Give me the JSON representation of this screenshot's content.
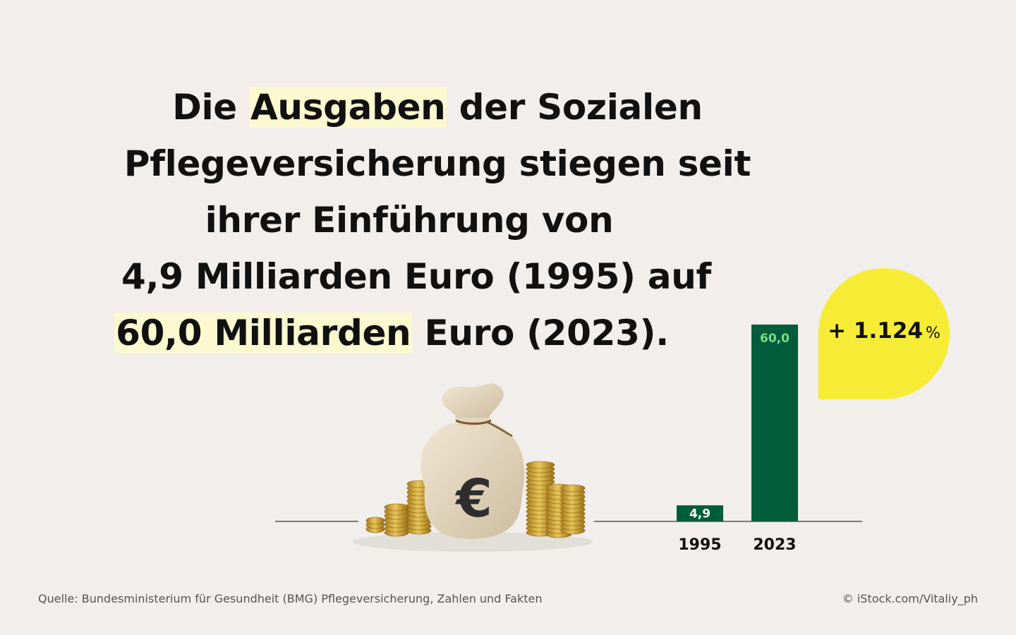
{
  "headline": {
    "line1_pre": "Die ",
    "line1_hl": "Ausgaben",
    "line1_post": " der Sozialen",
    "line2": "Pflegeversicherung stiegen seit",
    "line3": "ihrer Einführung von",
    "line4": "4,9 Milliarden Euro (1995) auf",
    "line5_hl": "60,0 Milliarden",
    "line5_post": " Euro (2023)."
  },
  "badge": {
    "text": "+ 1.124",
    "unit": "%"
  },
  "chart_data": {
    "type": "bar",
    "categories": [
      "1995",
      "2023"
    ],
    "values": [
      4.9,
      60.0
    ],
    "value_labels": [
      "4,9",
      "60,0"
    ],
    "title": "",
    "xlabel": "",
    "ylabel": "",
    "ylim": [
      0,
      60
    ],
    "grid": false,
    "legend": "none"
  },
  "colors": {
    "background": "#f1eeeb",
    "bar": "#005c3a",
    "bar_label_small": "#ffffff",
    "bar_label_large": "#7ddc80",
    "badge": "#f7ec35",
    "highlight": "#fcf8d0",
    "axis": "#555555"
  },
  "illustration": {
    "icon": "money-bag-with-coins-icon",
    "symbol": "€"
  },
  "footer": {
    "source": "Quelle: Bundesministerium für Gesundheit (BMG) Pflegeversicherung, Zahlen und Fakten",
    "credit": "© iStock.com/Vitaliy_ph"
  }
}
